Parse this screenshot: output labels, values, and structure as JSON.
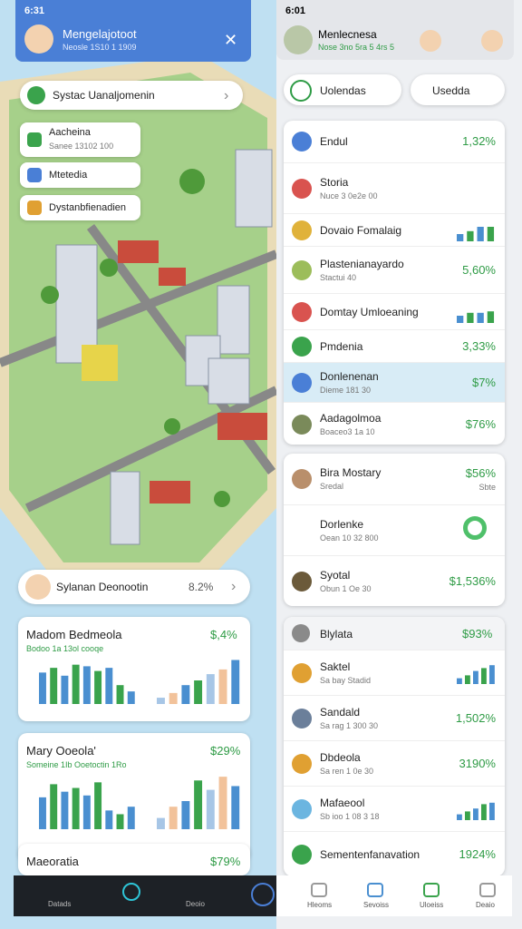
{
  "left": {
    "time": "6:31",
    "header_title": "Mengelajotoot",
    "header_sub": "Neosle 1S10 1 1909",
    "search": "Systac Uanaljomenin",
    "chips": [
      {
        "title": "Aacheina",
        "sub": "Sanee 13102 100"
      },
      {
        "title": "Mtetedia"
      },
      {
        "title": "Dystanbfienadien"
      }
    ],
    "pin": {
      "title": "Sylanan Deonootin",
      "value": "8.2%"
    },
    "cards": [
      {
        "title": "Madom Bedmeola",
        "value": "$,4%",
        "sub": "Bodoo 1a 13ol cooqe",
        "bars_a": [
          40,
          46,
          36,
          50,
          48,
          42,
          46,
          24,
          16
        ],
        "bars_b": [
          8,
          14,
          24,
          30,
          38,
          44,
          56
        ]
      },
      {
        "title": "Mary Ooeola'",
        "value": "$29%",
        "sub": "Someine 1Ib Ooetoctin 1Ro",
        "bars_a": [
          34,
          48,
          40,
          44,
          36,
          50,
          20,
          16,
          24
        ],
        "bars_b": [
          12,
          24,
          30,
          52,
          42,
          56,
          46
        ]
      },
      {
        "title": "Maeoratia",
        "value": "$79%"
      }
    ],
    "nav": [
      "Datads",
      "Deoio"
    ]
  },
  "right": {
    "time": "6:01",
    "header_title": "Menlecnesa",
    "header_sub": "Nose 3no 5ra 5 4rs 5",
    "tab_a": "Uolendas",
    "tab_b": "Usedda",
    "list": [
      {
        "title": "Endul",
        "value": "1,32%"
      },
      {
        "title": "Storia",
        "sub": "Nuce 3 0e2e 00"
      },
      {
        "title": "Dovaio Fomalaig",
        "bars": [
          10,
          14,
          20,
          20
        ]
      },
      {
        "title": "Plastenianayardo",
        "sub": "Stactui 40",
        "value": "5,60%"
      },
      {
        "title": "Domtay Umloeaning",
        "bars": [
          10,
          14,
          14,
          16
        ]
      },
      {
        "title": "Pmdenia",
        "value": "3,33%"
      },
      {
        "title": "Donlenenan",
        "sub": "Dieme 181 30",
        "value": "$7%"
      },
      {
        "title": "Aadagolmoa",
        "sub": "Boaceo3 1a 10",
        "value": "$76%"
      }
    ],
    "list2": [
      {
        "title": "Bira Mostary",
        "sub": "Sredal",
        "value": "$56%",
        "note": "Sbte"
      },
      {
        "title": "Dorlenke",
        "sub": "Oean 10 32 800"
      },
      {
        "title": "Syotal",
        "sub": "Obun 1 Oe 30",
        "value": "$1,536%"
      }
    ],
    "list3_title": "Blylata",
    "list3_value": "$93%",
    "list3": [
      {
        "title": "Saktel",
        "sub": "Sa bay Stadid",
        "bars": [
          8,
          12,
          18,
          22,
          26
        ]
      },
      {
        "title": "Sandald",
        "sub": "Sa rag 1 300 30",
        "value": "1,502%"
      },
      {
        "title": "Dbdeola",
        "sub": "Sa ren 1 0e 30",
        "value": "3190%"
      },
      {
        "title": "Mafaeool",
        "sub": "Sb ioo 1 08 3 18",
        "bars": [
          8,
          12,
          16,
          22,
          24
        ]
      },
      {
        "title": "Sementenfanavation",
        "value": "1924%"
      }
    ],
    "nav": [
      "Hleoms",
      "Sevoiss",
      "Uloeiss",
      "Deaio"
    ]
  }
}
